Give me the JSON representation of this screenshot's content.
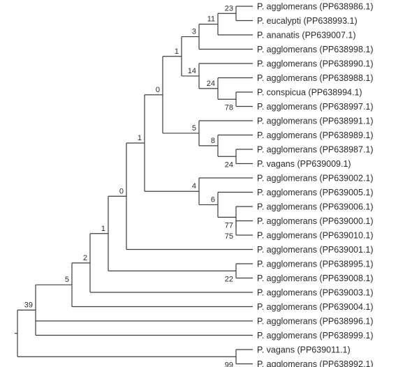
{
  "tree": {
    "leaves": [
      {
        "id": "L0",
        "label": "P. agglomerans (PP638986.1)"
      },
      {
        "id": "L1",
        "label": "P. eucalypti (PP638993.1)"
      },
      {
        "id": "L2",
        "label": "P. ananatis (PP639007.1)"
      },
      {
        "id": "L3",
        "label": "P. agglomerans (PP638998.1)"
      },
      {
        "id": "L4",
        "label": "P. agglomerans (PP638990.1)"
      },
      {
        "id": "L5",
        "label": "P. agglomerans (PP638988.1)"
      },
      {
        "id": "L6",
        "label": "P. conspicua (PP638994.1)"
      },
      {
        "id": "L7",
        "label": "P. agglomerans (PP638997.1)"
      },
      {
        "id": "L8",
        "label": "P. agglomerans (PP638991.1)"
      },
      {
        "id": "L9",
        "label": "P. agglomerans (PP638989.1)"
      },
      {
        "id": "L10",
        "label": "P. agglomerans (PP638987.1)"
      },
      {
        "id": "L11",
        "label": "P. vagans (PP639009.1)"
      },
      {
        "id": "L12",
        "label": "P. agglomerans (PP639002.1)"
      },
      {
        "id": "L13",
        "label": "P. agglomerans (PP639005.1)"
      },
      {
        "id": "L14",
        "label": "P. agglomerans (PP639006.1)"
      },
      {
        "id": "L15",
        "label": "P. agglomerans (PP639000.1)"
      },
      {
        "id": "L16",
        "label": "P. agglomerans (PP639010.1)"
      },
      {
        "id": "L17",
        "label": "P. agglomerans (PP639001.1)"
      },
      {
        "id": "L18",
        "label": "P. agglomerans (PP638995.1)"
      },
      {
        "id": "L19",
        "label": "P. agglomerans (PP639008.1)"
      },
      {
        "id": "L20",
        "label": "P. agglomerans (PP639003.1)"
      },
      {
        "id": "L21",
        "label": "P. agglomerans (PP639004.1)"
      },
      {
        "id": "L22",
        "label": "P. agglomerans (PP638996.1)"
      },
      {
        "id": "L23",
        "label": "P. agglomerans (PP638999.1)"
      },
      {
        "id": "L24",
        "label": "P. vagans (PP639011.1)"
      },
      {
        "id": "L25",
        "label": "P. agglomerans (PP638992.1)"
      }
    ],
    "clades": [
      {
        "id": "n23",
        "support": "23",
        "children": [
          "L0",
          "L1"
        ]
      },
      {
        "id": "n11",
        "support": "11",
        "children": [
          "n23",
          "L2"
        ]
      },
      {
        "id": "n3",
        "support": "3",
        "children": [
          "n11",
          "L3"
        ]
      },
      {
        "id": "n78",
        "support": "78",
        "children": [
          "L6",
          "L7"
        ]
      },
      {
        "id": "n24a",
        "support": "24",
        "children": [
          "L5",
          "n78"
        ]
      },
      {
        "id": "n14",
        "support": "14",
        "children": [
          "L4",
          "n24a"
        ]
      },
      {
        "id": "n1a",
        "support": "1",
        "children": [
          "n3",
          "n14"
        ]
      },
      {
        "id": "n24b",
        "support": "24",
        "children": [
          "L10",
          "L11"
        ]
      },
      {
        "id": "n8",
        "support": "8",
        "children": [
          "L9",
          "n24b"
        ]
      },
      {
        "id": "n5a",
        "support": "5",
        "children": [
          "L8",
          "n8"
        ]
      },
      {
        "id": "n0a",
        "support": "0",
        "children": [
          "n1a",
          "n5a"
        ]
      },
      {
        "id": "n75",
        "support": "75",
        "children": [
          "L15",
          "L16"
        ]
      },
      {
        "id": "n77",
        "support": "77",
        "children": [
          "L14",
          "n75"
        ]
      },
      {
        "id": "n6",
        "support": "6",
        "children": [
          "L13",
          "n77"
        ]
      },
      {
        "id": "n4",
        "support": "4",
        "children": [
          "L12",
          "n6"
        ]
      },
      {
        "id": "n1b",
        "support": "1",
        "children": [
          "n0a",
          "n4"
        ]
      },
      {
        "id": "n0b",
        "support": "0",
        "children": [
          "n1b",
          "L17"
        ]
      },
      {
        "id": "n22",
        "support": "22",
        "children": [
          "L18",
          "L19"
        ]
      },
      {
        "id": "n1c",
        "support": "1",
        "children": [
          "n0b",
          "n22"
        ]
      },
      {
        "id": "n2",
        "support": "2",
        "children": [
          "n1c",
          "L20"
        ]
      },
      {
        "id": "n5b",
        "support": "5",
        "children": [
          "n2",
          "L21"
        ]
      },
      {
        "id": "n39",
        "support": "39",
        "children": [
          "n5b",
          "L22",
          "L23"
        ]
      },
      {
        "id": "n99",
        "support": "99",
        "children": [
          "L24",
          "L25"
        ]
      },
      {
        "id": "root",
        "support": "",
        "children": [
          "n39",
          "n99"
        ]
      }
    ]
  }
}
